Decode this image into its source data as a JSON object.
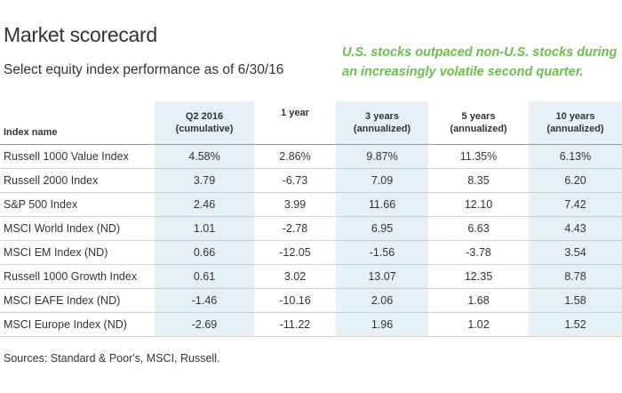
{
  "title": "Market scorecard",
  "subtitle": "Select equity index performance as of 6/30/16",
  "callout": "U.S. stocks outpaced non-U.S. stocks during an increasingly volatile second quarter.",
  "colors": {
    "accent_green": "#6abf4b",
    "shade_blue": "#e5f0f7"
  },
  "table": {
    "headers": {
      "name": "Index name",
      "q2_line1": "Q2 2016",
      "q2_line2": "(cumulative)",
      "y1": "1 year",
      "y3_line1": "3 years",
      "y3_line2": "(annualized)",
      "y5_line1": "5 years",
      "y5_line2": "(annualized)",
      "y10_line1": "10 years",
      "y10_line2": "(annualized)"
    },
    "rows": [
      {
        "name": "Russell 1000 Value Index",
        "q2": "4.58%",
        "y1": "2.86%",
        "y3": "9.87%",
        "y5": "11.35%",
        "y10": "6.13%"
      },
      {
        "name": "Russell 2000 Index",
        "q2": "3.79",
        "y1": "-6.73",
        "y3": "7.09",
        "y5": "8.35",
        "y10": "6.20"
      },
      {
        "name": "S&P 500 Index",
        "q2": "2.46",
        "y1": "3.99",
        "y3": "11.66",
        "y5": "12.10",
        "y10": "7.42"
      },
      {
        "name": "MSCI World Index (ND)",
        "q2": "1.01",
        "y1": "-2.78",
        "y3": "6.95",
        "y5": "6.63",
        "y10": "4.43"
      },
      {
        "name": "MSCI EM Index (ND)",
        "q2": "0.66",
        "y1": "-12.05",
        "y3": "-1.56",
        "y5": "-3.78",
        "y10": "3.54"
      },
      {
        "name": "Russell 1000 Growth Index",
        "q2": "0.61",
        "y1": "3.02",
        "y3": "13.07",
        "y5": "12.35",
        "y10": "8.78"
      },
      {
        "name": "MSCI EAFE Index (ND)",
        "q2": "-1.46",
        "y1": "-10.16",
        "y3": "2.06",
        "y5": "1.68",
        "y10": "1.58"
      },
      {
        "name": "MSCI Europe Index (ND)",
        "q2": "-2.69",
        "y1": "-11.22",
        "y3": "1.96",
        "y5": "1.02",
        "y10": "1.52"
      }
    ]
  },
  "source": "Sources: Standard & Poor's, MSCI, Russell."
}
